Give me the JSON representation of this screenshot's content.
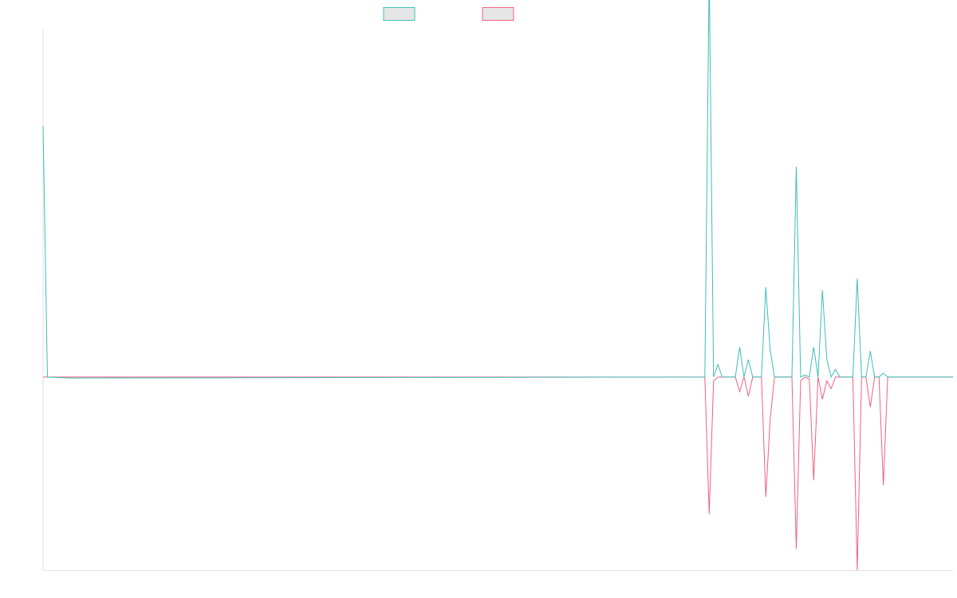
{
  "chart_data": {
    "type": "line",
    "title": "",
    "xlabel": "",
    "ylabel": "",
    "legend_position": "top-center",
    "grid": false,
    "ylim": [
      -100,
      180
    ],
    "xlim": [
      0,
      209
    ],
    "series": [
      {
        "key": "teal",
        "color": "#3dbdb8",
        "fill": "#e6e6e6",
        "x": [
          0,
          1,
          6,
          152,
          153,
          154,
          155,
          156,
          157,
          158,
          159,
          160,
          161,
          162,
          163,
          164,
          165,
          166,
          167,
          168,
          169,
          170,
          171,
          172,
          173,
          174,
          175,
          176,
          177,
          178,
          179,
          180,
          181,
          182,
          183,
          184,
          185,
          186,
          187,
          188,
          189,
          190,
          191,
          192,
          193,
          194,
          195,
          196,
          197,
          209
        ],
        "y": [
          130,
          0,
          -0.5,
          0,
          210,
          0,
          6.5,
          0,
          0,
          0,
          0,
          15.5,
          0,
          9,
          0,
          0,
          0,
          46.5,
          14,
          0,
          0,
          0,
          0,
          0,
          109,
          0,
          1,
          0,
          15.5,
          0,
          45,
          9.5,
          0,
          4,
          0,
          0,
          0,
          0,
          51,
          0,
          0,
          13.5,
          0,
          0,
          2,
          0,
          0,
          0,
          0,
          0
        ]
      },
      {
        "key": "pink",
        "color": "#f0607f",
        "fill": "#e6e6e6",
        "x": [
          0,
          1,
          6,
          152,
          153,
          154,
          155,
          156,
          157,
          158,
          159,
          160,
          161,
          162,
          163,
          164,
          165,
          166,
          167,
          168,
          169,
          170,
          171,
          172,
          173,
          174,
          175,
          176,
          177,
          178,
          179,
          180,
          181,
          182,
          183,
          184,
          185,
          186,
          187,
          188,
          189,
          190,
          191,
          192,
          193,
          194,
          195,
          196,
          197,
          209
        ],
        "y": [
          0,
          0,
          0,
          0,
          -71,
          -2,
          0,
          0,
          0,
          0,
          0,
          -7.5,
          0,
          -10,
          0,
          0,
          0,
          -62,
          -22,
          0,
          0,
          0,
          0,
          0,
          -89,
          -2,
          0,
          -1,
          -53.5,
          0,
          -11.5,
          -2,
          -6,
          0,
          0,
          0,
          0,
          0,
          -100,
          0,
          0,
          -15.5,
          0,
          0,
          -56,
          0,
          0,
          0,
          0,
          0
        ]
      }
    ]
  }
}
